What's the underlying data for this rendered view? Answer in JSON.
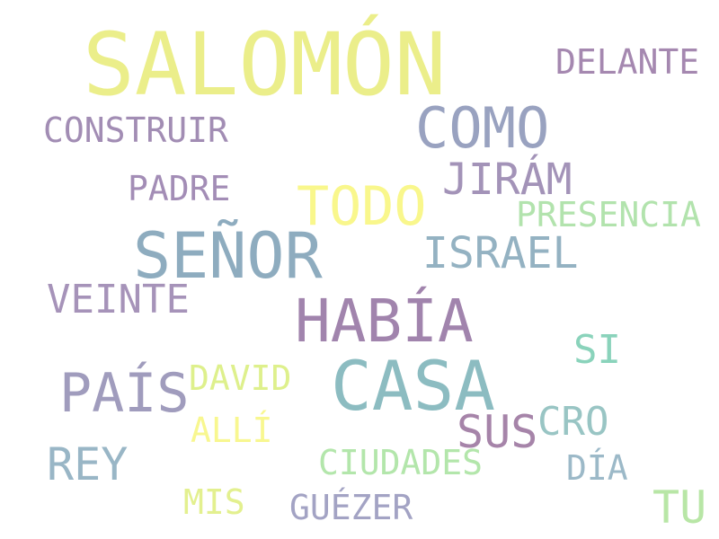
{
  "words": {
    "salomon": {
      "text": "SALOMÓN",
      "color": "#ebee8a"
    },
    "delante": {
      "text": "DELANTE",
      "color": "#a588b0"
    },
    "como": {
      "text": "COMO",
      "color": "#99a2c0"
    },
    "construir": {
      "text": "CONSTRUIR",
      "color": "#a28db4"
    },
    "jiram": {
      "text": "JIRÁM",
      "color": "#a393b8"
    },
    "padre": {
      "text": "PADRE",
      "color": "#a38db6"
    },
    "todo": {
      "text": "TODO",
      "color": "#f9f78c"
    },
    "presencia": {
      "text": "PRESENCIA",
      "color": "#b2e3ad"
    },
    "senor": {
      "text": "SEÑOR",
      "color": "#8eacbf"
    },
    "israel": {
      "text": "ISRAEL",
      "color": "#94b2c2"
    },
    "veinte": {
      "text": "VEINTE",
      "color": "#a693b9"
    },
    "habia": {
      "text": "HABÍA",
      "color": "#a184ad"
    },
    "si": {
      "text": "SI",
      "color": "#8ad3bb"
    },
    "david": {
      "text": "DAVID",
      "color": "#def08c"
    },
    "casa": {
      "text": "CASA",
      "color": "#8cbcc1"
    },
    "pais": {
      "text": "PAÍS",
      "color": "#a09cbd"
    },
    "cro": {
      "text": "CRO",
      "color": "#99c5c4"
    },
    "sus": {
      "text": "SUS",
      "color": "#a684a9"
    },
    "alli": {
      "text": "ALLÍ",
      "color": "#f8f790"
    },
    "rey": {
      "text": "REY",
      "color": "#99b6c6"
    },
    "ciudades": {
      "text": "CIUDADES",
      "color": "#b3e6ab"
    },
    "dia": {
      "text": "DÍA",
      "color": "#9cb9c8"
    },
    "mis": {
      "text": "MIS",
      "color": "#e3f08f"
    },
    "guezer": {
      "text": "GUÉZER",
      "color": "#a3a3c4"
    },
    "tu": {
      "text": "TU",
      "color": "#b8e6a6"
    }
  }
}
